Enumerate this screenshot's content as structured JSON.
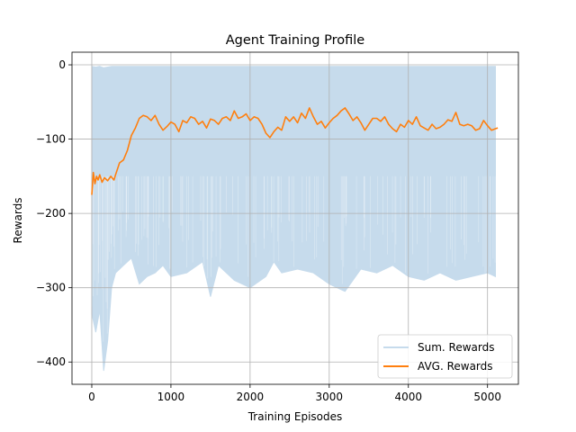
{
  "chart_data": {
    "type": "line",
    "title": "Agent Training Profile",
    "xlabel": "Training Episodes",
    "ylabel": "Rewards",
    "xlim": [
      -250,
      5390
    ],
    "ylim": [
      -430,
      17
    ],
    "x_ticks": [
      0,
      1000,
      2000,
      3000,
      4000,
      5000
    ],
    "y_ticks": [
      0,
      -100,
      -200,
      -300,
      -400
    ],
    "grid": true,
    "legend_position": "bottom-right",
    "colors": {
      "sum": "#c6dbec",
      "avg": "#ff7f0e",
      "grid": "#b0b0b0",
      "axis": "#000000"
    },
    "series": [
      {
        "name": "Sum. Rewards",
        "style": "band",
        "x": [
          0,
          50,
          100,
          150,
          200,
          250,
          300,
          400,
          500,
          600,
          700,
          800,
          900,
          1000,
          1200,
          1400,
          1500,
          1600,
          1800,
          2000,
          2200,
          2300,
          2400,
          2600,
          2800,
          3000,
          3200,
          3400,
          3600,
          3800,
          4000,
          4200,
          4400,
          4600,
          4800,
          5000,
          5100
        ],
        "upper": [
          -2,
          -3,
          -2,
          -4,
          -3,
          -2,
          -2,
          -2,
          -2,
          -2,
          -2,
          -2,
          -2,
          -2,
          -2,
          -2,
          -2,
          -2,
          -2,
          -2,
          -2,
          -2,
          -2,
          -2,
          -2,
          -2,
          -2,
          -2,
          -2,
          -2,
          -2,
          -2,
          -2,
          -2,
          -2,
          -2,
          -2
        ],
        "lower": [
          -335,
          -360,
          -330,
          -412,
          -372,
          -300,
          -280,
          -270,
          -260,
          -295,
          -285,
          -280,
          -270,
          -285,
          -280,
          -265,
          -312,
          -270,
          -290,
          -300,
          -285,
          -265,
          -280,
          -275,
          -280,
          -295,
          -305,
          -275,
          -280,
          -270,
          -285,
          -290,
          -280,
          -290,
          -285,
          -280,
          -285
        ]
      },
      {
        "name": "AVG. Rewards",
        "style": "line",
        "x": [
          0,
          20,
          40,
          60,
          80,
          100,
          130,
          160,
          200,
          240,
          280,
          300,
          350,
          400,
          450,
          500,
          550,
          600,
          650,
          700,
          750,
          800,
          850,
          900,
          950,
          1000,
          1050,
          1100,
          1150,
          1200,
          1250,
          1300,
          1350,
          1400,
          1450,
          1500,
          1550,
          1600,
          1650,
          1700,
          1750,
          1800,
          1850,
          1900,
          1950,
          2000,
          2050,
          2100,
          2150,
          2200,
          2250,
          2300,
          2350,
          2400,
          2450,
          2500,
          2550,
          2600,
          2650,
          2700,
          2750,
          2800,
          2850,
          2900,
          2950,
          3000,
          3050,
          3100,
          3150,
          3200,
          3250,
          3300,
          3350,
          3400,
          3450,
          3500,
          3550,
          3600,
          3650,
          3700,
          3750,
          3800,
          3850,
          3900,
          3950,
          4000,
          4050,
          4100,
          4150,
          4200,
          4250,
          4300,
          4350,
          4400,
          4450,
          4500,
          4550,
          4600,
          4650,
          4700,
          4750,
          4800,
          4850,
          4900,
          4950,
          5000,
          5050,
          5100,
          5130
        ],
        "y": [
          -175,
          -145,
          -160,
          -150,
          -155,
          -148,
          -158,
          -152,
          -156,
          -150,
          -155,
          -148,
          -132,
          -128,
          -115,
          -95,
          -85,
          -72,
          -68,
          -70,
          -75,
          -68,
          -80,
          -88,
          -83,
          -77,
          -80,
          -90,
          -75,
          -78,
          -70,
          -72,
          -80,
          -76,
          -85,
          -73,
          -75,
          -80,
          -72,
          -70,
          -75,
          -62,
          -72,
          -70,
          -66,
          -75,
          -70,
          -72,
          -80,
          -92,
          -98,
          -90,
          -84,
          -88,
          -70,
          -76,
          -70,
          -78,
          -65,
          -72,
          -58,
          -70,
          -80,
          -76,
          -85,
          -78,
          -72,
          -68,
          -62,
          -58,
          -66,
          -75,
          -70,
          -78,
          -88,
          -80,
          -72,
          -72,
          -76,
          -70,
          -80,
          -86,
          -90,
          -80,
          -84,
          -75,
          -80,
          -70,
          -82,
          -85,
          -88,
          -80,
          -86,
          -84,
          -80,
          -74,
          -76,
          -64,
          -80,
          -82,
          -80,
          -82,
          -88,
          -86,
          -75,
          -82,
          -88,
          -86,
          -85
        ]
      }
    ]
  }
}
